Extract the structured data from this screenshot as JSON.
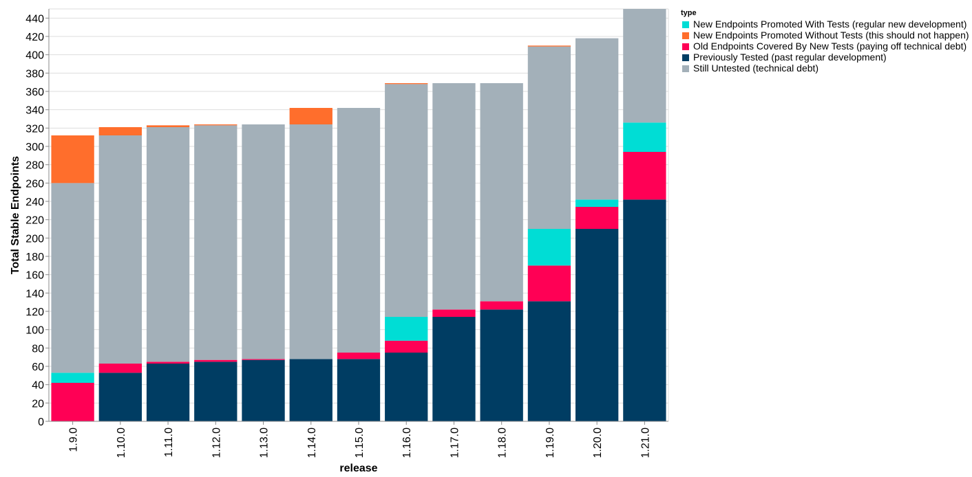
{
  "chart_data": {
    "type": "bar",
    "stacked": true,
    "xlabel": "release",
    "ylabel": "Total Stable Endpoints",
    "ylim": [
      0,
      450
    ],
    "yticks": [
      0,
      20,
      40,
      60,
      80,
      100,
      120,
      140,
      160,
      180,
      200,
      220,
      240,
      260,
      280,
      300,
      320,
      340,
      360,
      380,
      400,
      420,
      440
    ],
    "grid": true,
    "legend_title": "type",
    "legend_position": "right",
    "categories": [
      "1.9.0",
      "1.10.0",
      "1.11.0",
      "1.12.0",
      "1.13.0",
      "1.14.0",
      "1.15.0",
      "1.16.0",
      "1.17.0",
      "1.18.0",
      "1.19.0",
      "1.20.0",
      "1.21.0"
    ],
    "stack_order": [
      "Previously Tested (past regular development)",
      "Old Endpoints Covered By New Tests (paying off technical debt)",
      "New Endpoints Promoted With Tests (regular new development)",
      "Still Untested (technical debt)",
      "New Endpoints Promoted Without Tests (this should not happen)"
    ],
    "series": [
      {
        "name": "New Endpoints Promoted With Tests (regular new development)",
        "color": "#00DDD5",
        "values": [
          11,
          0,
          0,
          0,
          0,
          0,
          0,
          26,
          0,
          0,
          40,
          8,
          32
        ]
      },
      {
        "name": "New Endpoints Promoted Without Tests (this should not happen)",
        "color": "#FF6E2C",
        "values": [
          52,
          9,
          2,
          1,
          0,
          18,
          0,
          1,
          0,
          0,
          1,
          0,
          0
        ]
      },
      {
        "name": "Old Endpoints Covered By New Tests (paying off technical debt)",
        "color": "#FF0055",
        "values": [
          42,
          10,
          2,
          2,
          1,
          0,
          7,
          13,
          8,
          9,
          39,
          24,
          52
        ]
      },
      {
        "name": "Previously Tested (past regular development)",
        "color": "#003D63",
        "values": [
          0,
          53,
          63,
          65,
          67,
          68,
          68,
          75,
          114,
          122,
          131,
          210,
          242
        ]
      },
      {
        "name": "Still Untested (technical debt)",
        "color": "#A3B0B9",
        "values": [
          207,
          249,
          256,
          256,
          256,
          256,
          267,
          254,
          247,
          238,
          199,
          176,
          124
        ]
      }
    ]
  }
}
